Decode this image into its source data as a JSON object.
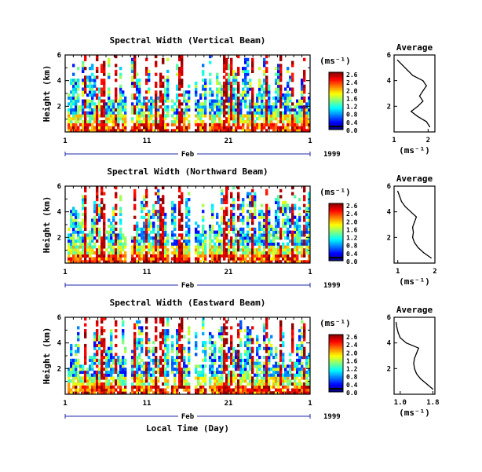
{
  "figure": {
    "xlabel": "Local Time (Day)",
    "month_label": "Feb",
    "year_label": "1999",
    "colorbar_unit": "(ms⁻¹)",
    "colorbar_ticks": [
      "2.6",
      "2.4",
      "2.0",
      "1.6",
      "1.2",
      "0.8",
      "0.4",
      "0.0"
    ],
    "profile_title": "Average",
    "profile_xlabel": "(ms⁻¹)"
  },
  "chart_data": [
    {
      "type": "heatmap",
      "title": "Spectral Width (Vertical Beam)",
      "ylabel": "Height (km)",
      "x_ticks": [
        "1",
        "11",
        "21",
        "1"
      ],
      "y_ticks": [
        "6",
        "4",
        "2"
      ],
      "xlim_days": [
        1,
        31
      ],
      "ylim_km": [
        0,
        6
      ],
      "colorscale": "jet",
      "zlim": [
        0.0,
        2.6
      ],
      "profile": {
        "title": "Average",
        "x_ticks": [
          "1",
          "2"
        ],
        "xlim": [
          1.0,
          2.2
        ],
        "y_ticks": [
          "6",
          "4",
          "2"
        ],
        "heights": [
          0.4,
          0.8,
          1.2,
          1.6,
          2.0,
          2.4,
          2.8,
          3.2,
          3.6,
          4.0,
          4.4,
          4.8,
          5.2,
          5.6
        ],
        "values": [
          2.05,
          1.95,
          1.7,
          1.5,
          1.7,
          1.85,
          1.75,
          1.85,
          1.95,
          1.85,
          1.55,
          1.4,
          1.25,
          1.1
        ]
      }
    },
    {
      "type": "heatmap",
      "title": "Spectral Width (Northward Beam)",
      "ylabel": "Height (km)",
      "x_ticks": [
        "1",
        "11",
        "21",
        "1"
      ],
      "y_ticks": [
        "6",
        "4",
        "2"
      ],
      "xlim_days": [
        1,
        31
      ],
      "ylim_km": [
        0,
        6
      ],
      "colorscale": "jet",
      "zlim": [
        0.0,
        2.6
      ],
      "profile": {
        "title": "Average",
        "x_ticks": [
          "1",
          "2"
        ],
        "xlim": [
          0.9,
          2.0
        ],
        "y_ticks": [
          "6",
          "4",
          "2"
        ],
        "heights": [
          0.4,
          0.8,
          1.2,
          1.6,
          2.0,
          2.4,
          2.8,
          3.2,
          3.6,
          4.0,
          4.4,
          4.8,
          5.2,
          5.6
        ],
        "values": [
          1.9,
          1.7,
          1.55,
          1.45,
          1.4,
          1.42,
          1.4,
          1.45,
          1.5,
          1.35,
          1.2,
          1.1,
          1.05,
          1.0
        ]
      }
    },
    {
      "type": "heatmap",
      "title": "Spectral Width (Eastward Beam)",
      "ylabel": "Height (km)",
      "x_ticks": [
        "1",
        "11",
        "21",
        "1"
      ],
      "y_ticks": [
        "6",
        "4",
        "2"
      ],
      "xlim_days": [
        1,
        31
      ],
      "ylim_km": [
        0,
        6
      ],
      "colorscale": "jet",
      "zlim": [
        0.0,
        2.6
      ],
      "profile": {
        "title": "Average",
        "x_ticks": [
          "1.0",
          "1.8"
        ],
        "xlim": [
          0.85,
          1.85
        ],
        "y_ticks": [
          "6",
          "4",
          "2"
        ],
        "heights": [
          0.4,
          0.8,
          1.2,
          1.6,
          2.0,
          2.4,
          2.8,
          3.2,
          3.6,
          4.0,
          4.4,
          4.8,
          5.2,
          5.6
        ],
        "values": [
          1.8,
          1.65,
          1.5,
          1.4,
          1.35,
          1.33,
          1.35,
          1.4,
          1.45,
          1.15,
          1.0,
          0.95,
          0.92,
          0.9
        ]
      }
    }
  ]
}
